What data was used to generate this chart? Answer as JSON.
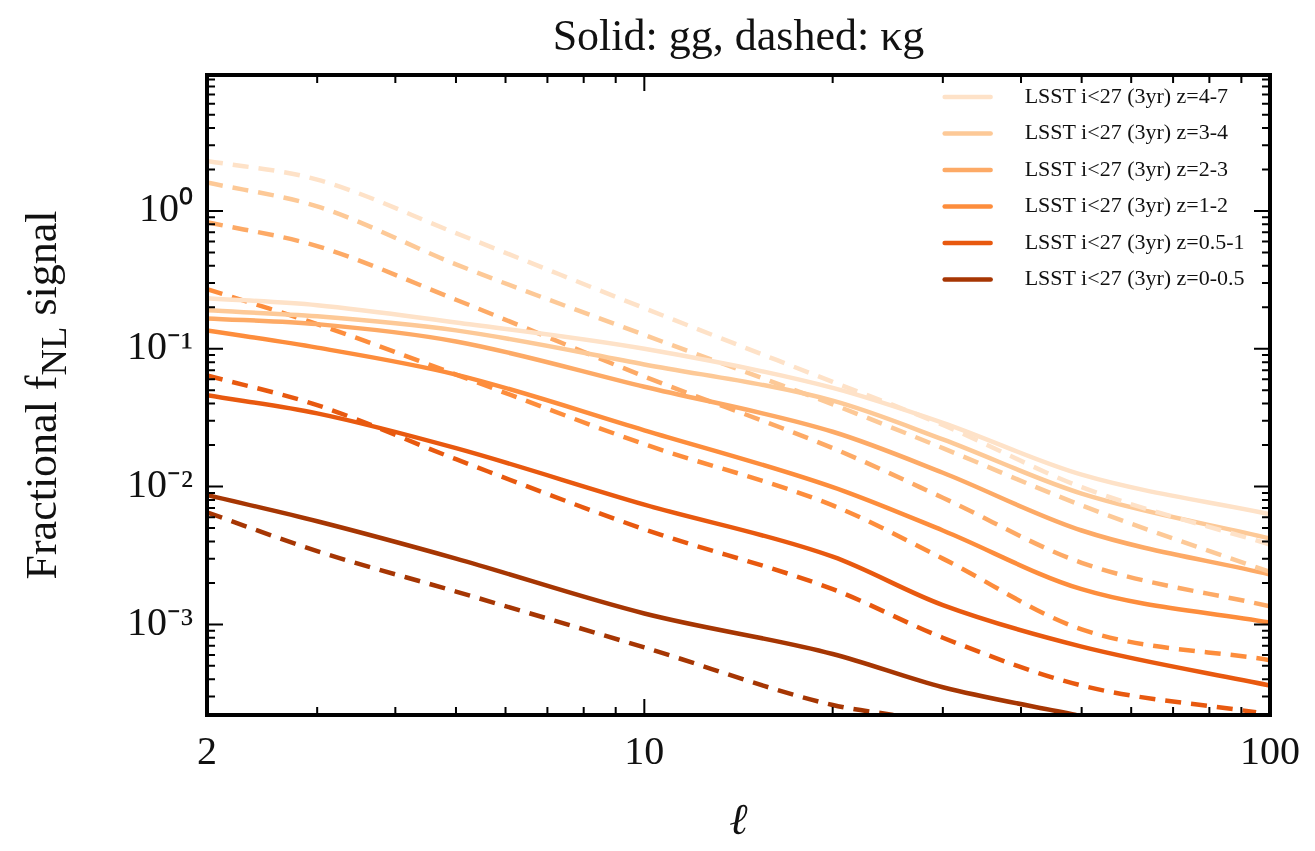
{
  "chart_data": {
    "type": "line",
    "title": "Solid: gg,  dashed: κg",
    "xlabel": "ℓ",
    "ylabel": "Fractional f$_{NL}$ signal",
    "log": "xy",
    "legend": "top right",
    "xlim": [
      2,
      100
    ],
    "ylim": [
      0.00022,
      9.7
    ],
    "xticks": [
      2,
      {
        "value": 3,
        "label": null
      },
      {
        "value": 4,
        "label": null
      },
      {
        "value": 5,
        "label": null
      },
      {
        "value": 6,
        "label": null
      },
      {
        "value": 7,
        "label": null
      },
      {
        "value": 8,
        "label": null
      },
      {
        "value": 9,
        "label": null
      },
      10,
      {
        "value": 20,
        "label": null
      },
      {
        "value": 30,
        "label": null
      },
      {
        "value": 40,
        "label": null
      },
      {
        "value": 50,
        "label": null
      },
      {
        "value": 60,
        "label": null
      },
      {
        "value": 70,
        "label": null
      },
      {
        "value": 80,
        "label": null
      },
      {
        "value": 90,
        "label": null
      },
      100
    ],
    "yticks": [
      {
        "value": 0.0003,
        "label": null
      },
      {
        "value": 0.0004,
        "label": null
      },
      {
        "value": 0.0005,
        "label": null
      },
      {
        "value": 0.0006,
        "label": null
      },
      {
        "value": 0.0007,
        "label": null
      },
      {
        "value": 0.0008,
        "label": null
      },
      {
        "value": 0.0009,
        "label": null
      },
      {
        "value": 0.001,
        "label": "10⁻³"
      },
      {
        "value": 0.002,
        "label": null
      },
      {
        "value": 0.003,
        "label": null
      },
      {
        "value": 0.004,
        "label": null
      },
      {
        "value": 0.005,
        "label": null
      },
      {
        "value": 0.006,
        "label": null
      },
      {
        "value": 0.007,
        "label": null
      },
      {
        "value": 0.008,
        "label": null
      },
      {
        "value": 0.009,
        "label": null
      },
      {
        "value": 0.01,
        "label": "10⁻²"
      },
      {
        "value": 0.02,
        "label": null
      },
      {
        "value": 0.03,
        "label": null
      },
      {
        "value": 0.04,
        "label": null
      },
      {
        "value": 0.05,
        "label": null
      },
      {
        "value": 0.06,
        "label": null
      },
      {
        "value": 0.07,
        "label": null
      },
      {
        "value": 0.08,
        "label": null
      },
      {
        "value": 0.09,
        "label": null
      },
      {
        "value": 0.1,
        "label": "10⁻¹"
      },
      {
        "value": 0.2,
        "label": null
      },
      {
        "value": 0.3,
        "label": null
      },
      {
        "value": 0.4,
        "label": null
      },
      {
        "value": 0.5,
        "label": null
      },
      {
        "value": 0.6,
        "label": null
      },
      {
        "value": 0.7,
        "label": null
      },
      {
        "value": 0.8,
        "label": null
      },
      {
        "value": 0.9,
        "label": null
      },
      {
        "value": 1,
        "label": "10⁰"
      },
      {
        "value": 2,
        "label": null
      },
      {
        "value": 3,
        "label": null
      },
      {
        "value": 4,
        "label": null
      },
      {
        "value": 5,
        "label": null
      },
      {
        "value": 6,
        "label": null
      },
      {
        "value": 7,
        "label": null
      },
      {
        "value": 8,
        "label": null
      },
      {
        "value": 9,
        "label": null
      }
    ],
    "x": [
      2,
      3,
      5,
      10,
      20,
      30,
      50,
      100
    ],
    "series": [
      {
        "name": "LSST i<27 (3yr) z=4-7",
        "color": "#fee2c8",
        "line_style": "solid",
        "values": [
          0.233,
          0.207,
          0.155,
          0.1,
          0.052,
          0.029,
          0.0122,
          0.0063
        ]
      },
      {
        "color": "#fee2c8",
        "line_style": "dashed",
        "values": [
          2.31,
          1.69,
          0.69,
          0.197,
          0.0575,
          0.028,
          0.0099,
          0.0038
        ]
      },
      {
        "name": "LSST i<27 (3yr) z=3-4",
        "color": "#fdc997",
        "line_style": "solid",
        "values": [
          0.19,
          0.172,
          0.136,
          0.077,
          0.042,
          0.022,
          0.0089,
          0.0042
        ]
      },
      {
        "color": "#fdc997",
        "line_style": "dashed",
        "values": [
          1.61,
          1.08,
          0.41,
          0.126,
          0.0395,
          0.019,
          0.0073,
          0.0024
        ]
      },
      {
        "name": "LSST i<27 (3yr) z=2-3",
        "color": "#fdaa66",
        "line_style": "solid",
        "values": [
          0.166,
          0.151,
          0.113,
          0.053,
          0.025,
          0.0126,
          0.0048,
          0.0023
        ]
      },
      {
        "color": "#fdaa66",
        "line_style": "dashed",
        "values": [
          0.83,
          0.556,
          0.227,
          0.063,
          0.019,
          0.0083,
          0.0028,
          0.00135
        ]
      },
      {
        "name": "LSST i<27 (3yr) z=1-2",
        "color": "#fd8d3c",
        "line_style": "solid",
        "values": [
          0.136,
          0.102,
          0.065,
          0.0256,
          0.0099,
          0.0048,
          0.0018,
          0.00103
        ]
      },
      {
        "color": "#fd8d3c",
        "line_style": "dashed",
        "values": [
          0.271,
          0.151,
          0.065,
          0.0203,
          0.0073,
          0.003,
          0.00092,
          0.00055
        ]
      },
      {
        "name": "LSST i<27 (3yr) z=0.5-1",
        "color": "#e8590f",
        "line_style": "solid",
        "values": [
          0.046,
          0.034,
          0.019,
          0.0074,
          0.0031,
          0.00138,
          0.00069,
          0.00036
        ]
      },
      {
        "color": "#e8590f",
        "line_style": "dashed",
        "x": [
          2,
          3,
          5,
          10,
          20,
          30,
          50,
          95
        ],
        "values": [
          0.064,
          0.039,
          0.0158,
          0.0049,
          0.0018,
          0.0008,
          0.00036,
          0.00023
        ]
      },
      {
        "name": "LSST i<27 (3yr) z=0-0.5",
        "color": "#a63603",
        "line_style": "solid",
        "x": [
          2,
          3,
          5,
          10,
          20,
          30,
          49
        ],
        "values": [
          0.0087,
          0.0056,
          0.003,
          0.0012,
          0.00061,
          0.00035,
          0.00022
        ]
      },
      {
        "color": "#a63603",
        "line_style": "dashed",
        "x": [
          2,
          3,
          5,
          10,
          20,
          25
        ],
        "values": [
          0.0065,
          0.0034,
          0.00173,
          0.00068,
          0.00026,
          0.00022
        ]
      }
    ]
  }
}
